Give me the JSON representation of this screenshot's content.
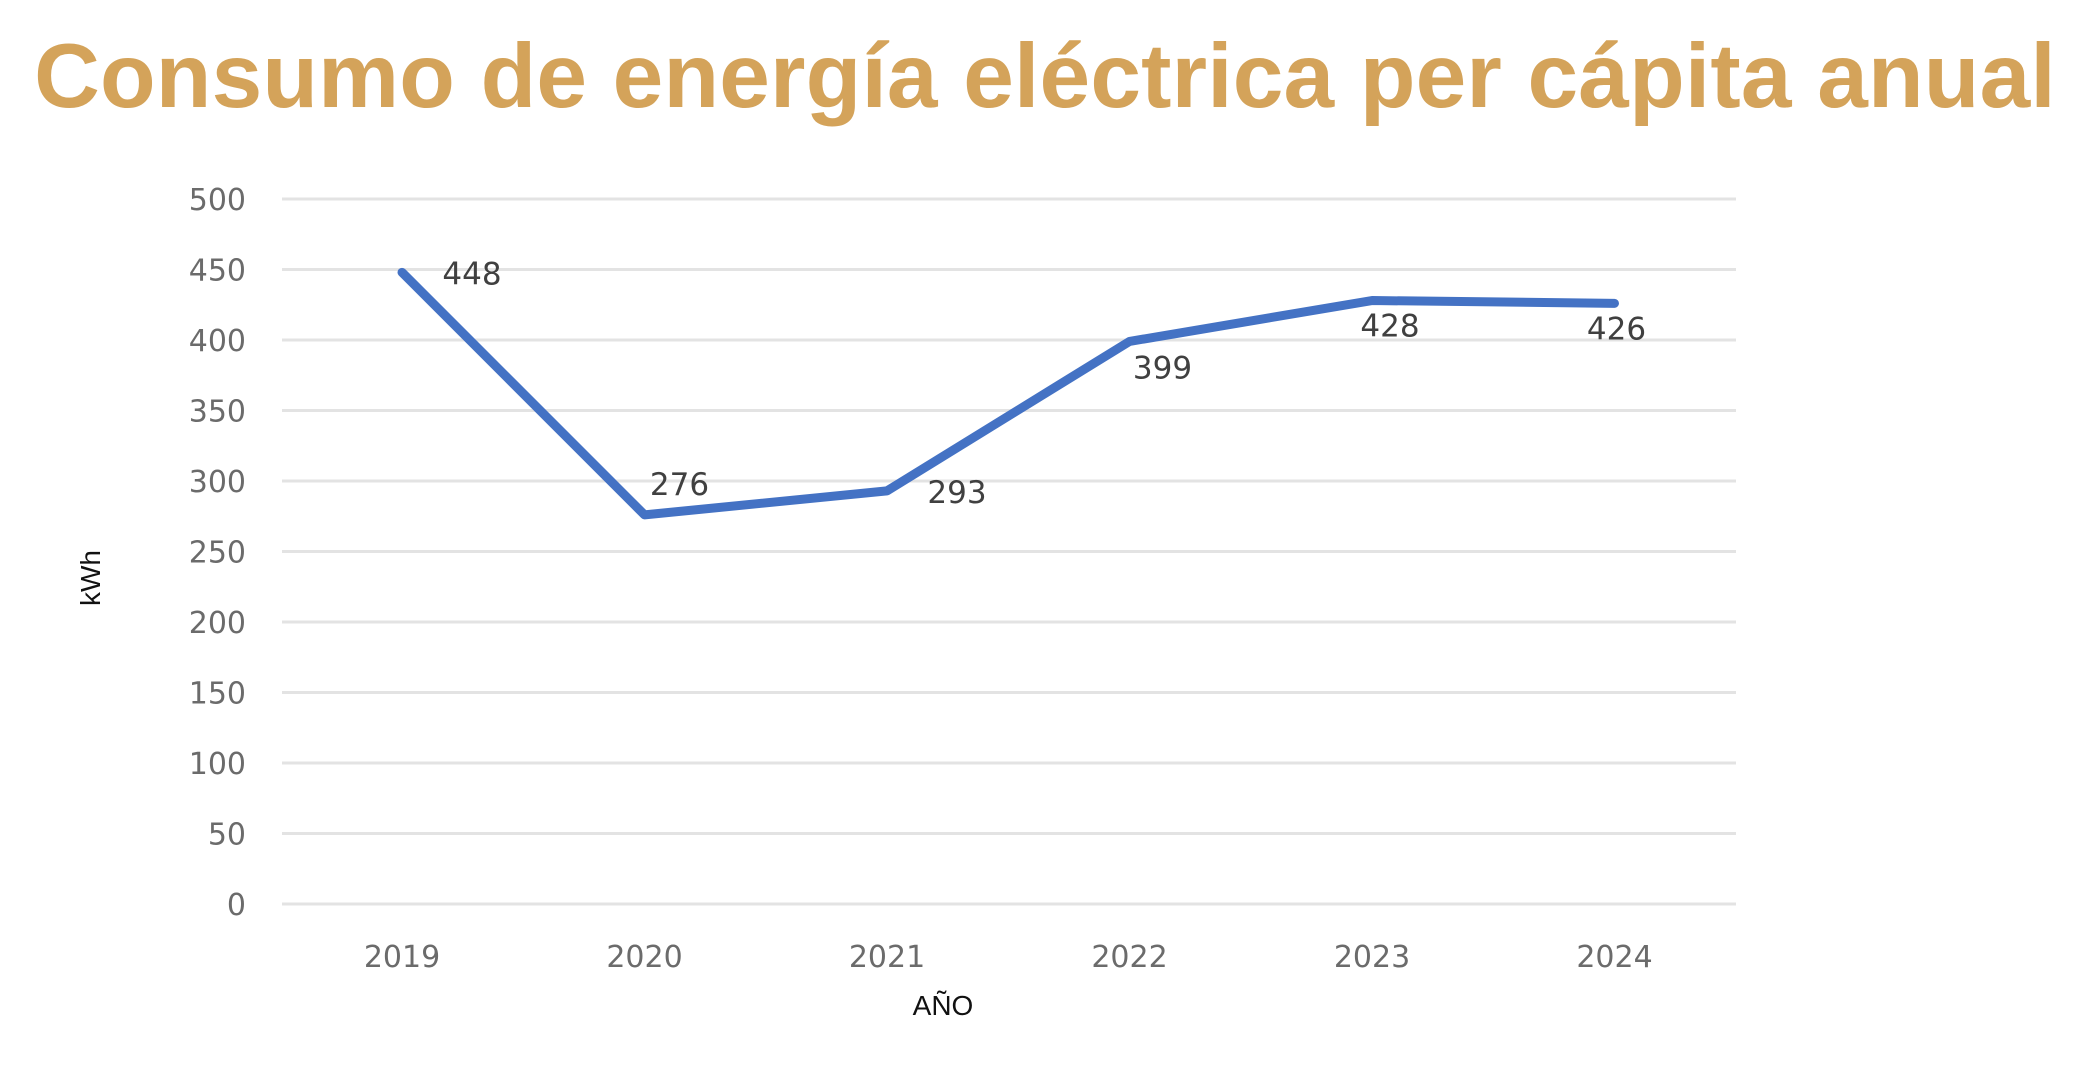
{
  "page": {
    "title": "Consumo de energía eléctrica per cápita anual"
  },
  "colors": {
    "title": "#D4A35A",
    "series_line": "#4472C4",
    "gridline": "#E3E3E3",
    "tick_label": "#6B6B6B",
    "data_label": "#404040"
  },
  "chart_data": {
    "type": "line",
    "title": "Consumo de energía eléctrica per cápita anual",
    "xlabel": "AÑO",
    "ylabel": "kWh",
    "categories": [
      "2019",
      "2020",
      "2021",
      "2022",
      "2023",
      "2024"
    ],
    "series": [
      {
        "name": "kWh",
        "values": [
          448,
          276,
          293,
          399,
          428,
          426
        ]
      }
    ],
    "data_labels": [
      "448",
      "276",
      "293",
      "399",
      "428",
      "426"
    ],
    "ylim": [
      0,
      500
    ],
    "yticks": [
      0,
      50,
      100,
      150,
      200,
      250,
      300,
      350,
      400,
      450,
      500
    ],
    "grid": true,
    "legend": "none"
  }
}
